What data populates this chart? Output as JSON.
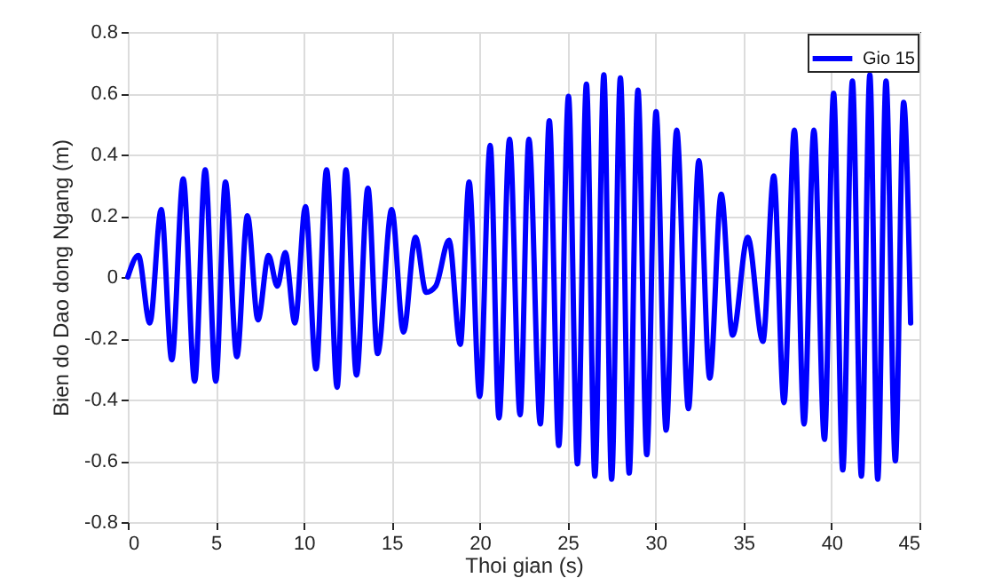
{
  "chart_data": {
    "type": "line",
    "xlabel": "Thoi gian (s)",
    "ylabel": "Bien do Dao dong Ngang  (m)",
    "xlim": [
      0,
      45
    ],
    "xticks": [
      0,
      5,
      10,
      15,
      20,
      25,
      30,
      35,
      40,
      45
    ],
    "ylim": [
      -0.8,
      0.8
    ],
    "yticks": [
      -0.8,
      -0.6,
      -0.4,
      -0.2,
      0,
      0.2,
      0.4,
      0.6,
      0.8
    ],
    "grid": true,
    "legend": "top right",
    "line_style": "solid",
    "marker": "none",
    "series": [
      {
        "name": "Gio 15",
        "color": "#0000ff",
        "x": [
          0,
          0.6,
          1.25,
          1.9,
          2.5,
          3.15,
          3.8,
          4.4,
          5.0,
          5.55,
          6.2,
          6.8,
          7.4,
          8.0,
          8.5,
          8.95,
          9.5,
          10.1,
          10.7,
          11.3,
          11.9,
          12.4,
          13.0,
          13.65,
          14.2,
          15.0,
          15.67,
          16.35,
          16.96,
          17.5,
          18.26,
          18.9,
          19.4,
          20.0,
          20.6,
          21.1,
          21.7,
          22.3,
          22.8,
          23.45,
          23.96,
          24.5,
          25.05,
          25.56,
          26.07,
          26.55,
          27.06,
          27.5,
          28.0,
          28.5,
          29.0,
          29.5,
          30.03,
          30.6,
          31.2,
          31.87,
          32.46,
          33.08,
          33.73,
          34.38,
          35.24,
          36.1,
          36.72,
          37.3,
          37.89,
          38.44,
          39.0,
          39.6,
          40.12,
          40.64,
          41.19,
          41.7,
          42.18,
          42.63,
          43.1,
          43.63,
          44.1,
          44.5
        ],
        "values": [
          0,
          0.07,
          -0.15,
          0.22,
          -0.27,
          0.32,
          -0.34,
          0.35,
          -0.34,
          0.31,
          -0.26,
          0.2,
          -0.14,
          0.07,
          -0.03,
          0.08,
          -0.15,
          0.23,
          -0.3,
          0.35,
          -0.36,
          0.35,
          -0.32,
          0.29,
          -0.25,
          0.22,
          -0.18,
          0.13,
          -0.05,
          -0.03,
          0.12,
          -0.22,
          0.31,
          -0.39,
          0.43,
          -0.46,
          0.45,
          -0.45,
          0.45,
          -0.48,
          0.51,
          -0.55,
          0.59,
          -0.61,
          0.63,
          -0.65,
          0.66,
          -0.66,
          0.65,
          -0.64,
          0.61,
          -0.58,
          0.54,
          -0.5,
          0.48,
          -0.43,
          0.38,
          -0.33,
          0.27,
          -0.19,
          0.13,
          -0.21,
          0.33,
          -0.41,
          0.48,
          -0.48,
          0.48,
          -0.53,
          0.6,
          -0.63,
          0.64,
          -0.65,
          0.66,
          -0.66,
          0.64,
          -0.6,
          0.57,
          -0.15
        ]
      }
    ]
  }
}
